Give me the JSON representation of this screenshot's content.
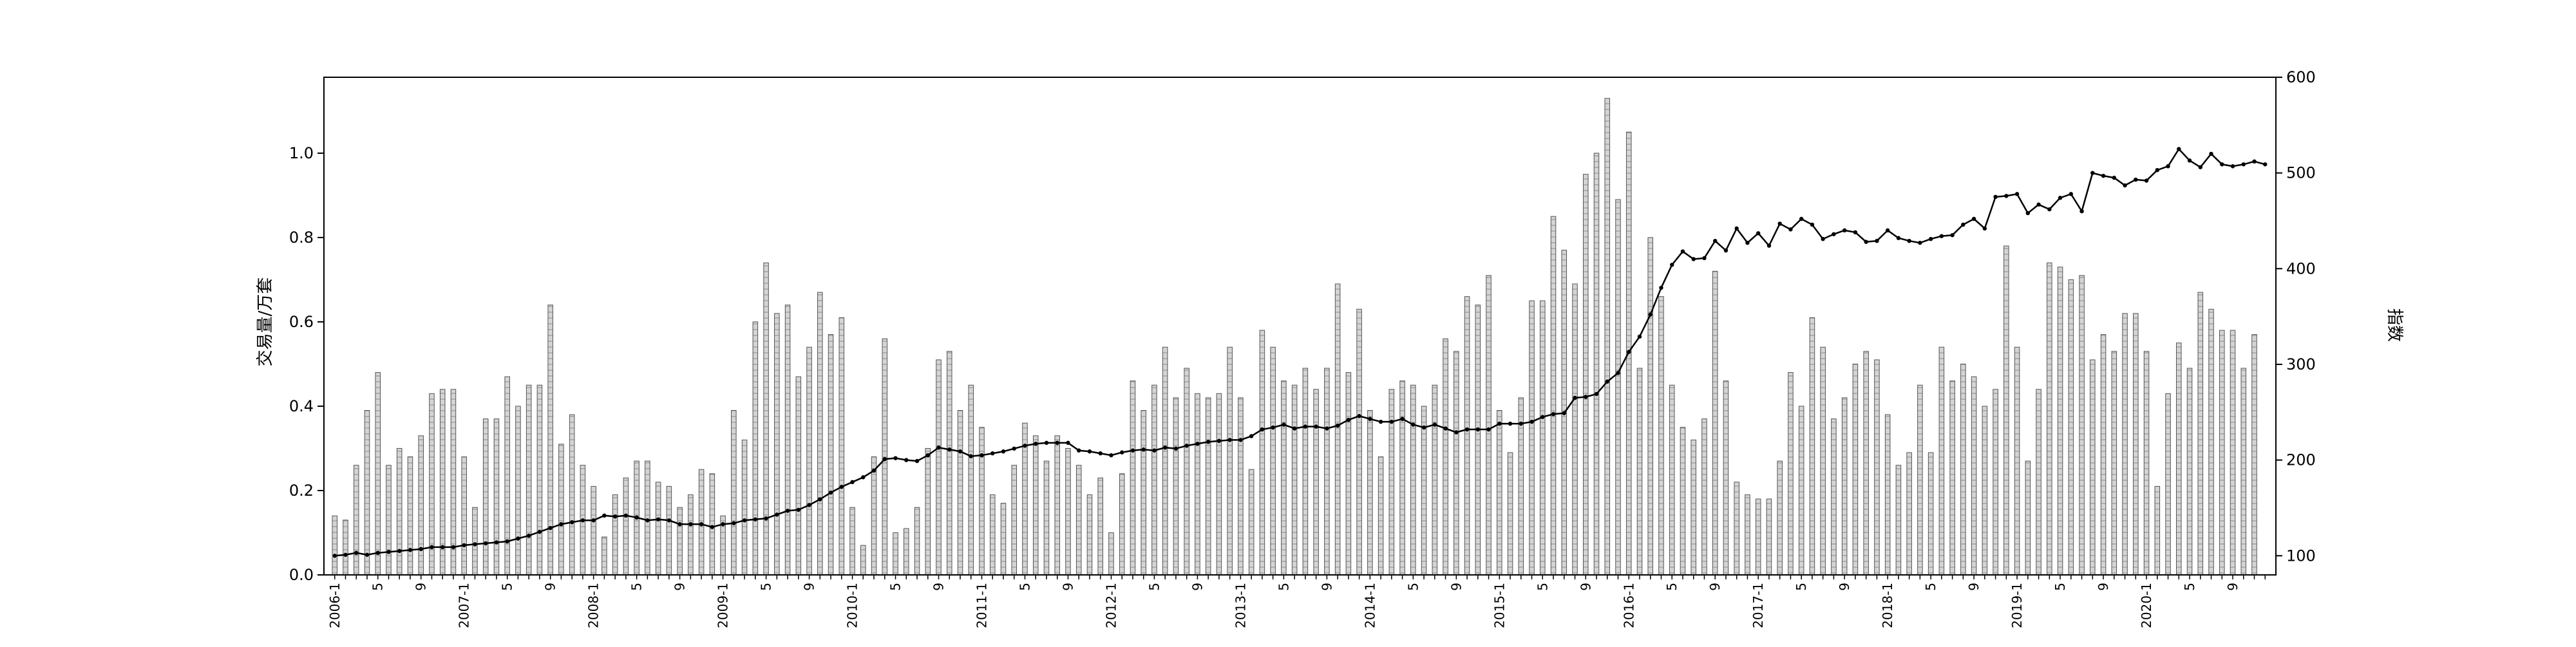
{
  "chart_data": {
    "type": "bar+line",
    "left_axis": {
      "label": "交易量/万套",
      "ylim": [
        0,
        1.18
      ],
      "ticks": [
        0.0,
        0.2,
        0.4,
        0.6,
        0.8,
        1.0
      ],
      "tick_labels": [
        "0.0",
        "0.2",
        "0.4",
        "0.6",
        "0.8",
        "1.0"
      ]
    },
    "right_axis": {
      "label": "指数",
      "ylim": [
        80,
        600
      ],
      "ticks": [
        100,
        200,
        300,
        400,
        500,
        600
      ],
      "tick_labels": [
        "100",
        "200",
        "300",
        "400",
        "500",
        "600"
      ]
    },
    "x_tick_labels": [
      "2006-1",
      "5",
      "9",
      "2007-1",
      "5",
      "9",
      "2008-1",
      "5",
      "9",
      "2009-1",
      "5",
      "9",
      "2010-1",
      "5",
      "9",
      "2011-1",
      "5",
      "9",
      "2012-1",
      "5",
      "9",
      "2013-1",
      "5",
      "9",
      "2014-1",
      "5",
      "9",
      "2015-1",
      "5",
      "9",
      "2016-1",
      "5",
      "9",
      "2017-1",
      "5",
      "9",
      "2018-1",
      "5",
      "9",
      "2019-1",
      "5",
      "9",
      "2020-1",
      "5",
      "9"
    ],
    "months": 180,
    "series": [
      {
        "type": "bar",
        "axis": "left",
        "values": [
          0.14,
          0.13,
          0.26,
          0.39,
          0.48,
          0.26,
          0.3,
          0.28,
          0.33,
          0.43,
          0.44,
          0.44,
          0.28,
          0.16,
          0.37,
          0.37,
          0.47,
          0.4,
          0.45,
          0.45,
          0.64,
          0.31,
          0.38,
          0.26,
          0.21,
          0.09,
          0.19,
          0.23,
          0.27,
          0.27,
          0.22,
          0.21,
          0.16,
          0.19,
          0.25,
          0.24,
          0.14,
          0.39,
          0.32,
          0.6,
          0.74,
          0.62,
          0.64,
          0.47,
          0.54,
          0.67,
          0.57,
          0.61,
          0.16,
          0.07,
          0.28,
          0.56,
          0.1,
          0.11,
          0.16,
          0.3,
          0.51,
          0.53,
          0.39,
          0.45,
          0.35,
          0.19,
          0.17,
          0.26,
          0.36,
          0.33,
          0.27,
          0.33,
          0.3,
          0.26,
          0.19,
          0.23,
          0.1,
          0.24,
          0.46,
          0.39,
          0.45,
          0.54,
          0.42,
          0.49,
          0.43,
          0.42,
          0.43,
          0.54,
          0.42,
          0.25,
          0.58,
          0.54,
          0.46,
          0.45,
          0.49,
          0.44,
          0.49,
          0.69,
          0.48,
          0.63,
          0.39,
          0.28,
          0.44,
          0.46,
          0.45,
          0.4,
          0.45,
          0.56,
          0.53,
          0.66,
          0.64,
          0.71,
          0.39,
          0.29,
          0.42,
          0.65,
          0.65,
          0.85,
          0.77,
          0.69,
          0.95,
          1.0,
          1.13,
          0.89,
          1.05,
          0.49,
          0.8,
          0.66,
          0.45,
          0.35,
          0.32,
          0.37,
          0.72,
          0.46,
          0.22,
          0.19,
          0.18,
          0.18,
          0.27,
          0.48,
          0.4,
          0.61,
          0.54,
          0.37,
          0.42,
          0.5,
          0.53,
          0.51,
          0.38,
          0.26,
          0.29,
          0.45,
          0.29,
          0.54,
          0.46,
          0.5,
          0.47,
          0.4,
          0.44,
          0.78,
          0.54,
          0.27,
          0.44,
          0.74,
          0.73,
          0.7,
          0.71,
          0.51,
          0.57,
          0.53,
          0.62,
          0.62,
          0.53,
          0.21,
          0.43,
          0.55,
          0.49,
          0.67,
          0.63,
          0.58,
          0.58,
          0.49,
          0.57
        ]
      },
      {
        "type": "line",
        "axis": "right",
        "values": [
          100,
          101,
          103,
          101,
          103,
          104,
          105,
          106,
          107,
          109,
          109,
          109,
          111,
          112,
          113,
          114,
          115,
          118,
          121,
          125,
          129,
          133,
          135,
          137,
          137,
          142,
          141,
          142,
          140,
          137,
          138,
          137,
          133,
          133,
          133,
          130,
          133,
          134,
          137,
          138,
          139,
          143,
          147,
          148,
          153,
          159,
          166,
          172,
          177,
          182,
          189,
          201,
          202,
          200,
          199,
          205,
          213,
          211,
          209,
          204,
          205,
          207,
          209,
          212,
          215,
          217,
          218,
          218,
          218,
          210,
          209,
          207,
          205,
          208,
          210,
          211,
          210,
          213,
          212,
          215,
          217,
          219,
          220,
          221,
          221,
          225,
          232,
          234,
          237,
          233,
          235,
          235,
          233,
          236,
          242,
          246,
          243,
          240,
          240,
          243,
          237,
          234,
          237,
          233,
          229,
          232,
          232,
          232,
          238,
          238,
          238,
          240,
          245,
          248,
          249,
          265,
          266,
          269,
          282,
          291,
          313,
          329,
          352,
          380,
          404,
          418,
          410,
          411,
          429,
          419,
          442,
          427,
          437,
          424,
          447,
          441,
          452,
          446,
          431,
          436,
          440,
          438,
          428,
          429,
          440,
          432,
          429,
          427,
          431,
          434,
          435,
          446,
          452,
          442,
          475,
          476,
          478,
          458,
          467,
          462,
          474,
          478,
          460,
          500,
          497,
          495,
          487,
          493,
          492,
          503,
          507,
          525,
          513,
          506,
          520,
          509,
          507,
          509,
          512,
          509
        ]
      }
    ]
  }
}
